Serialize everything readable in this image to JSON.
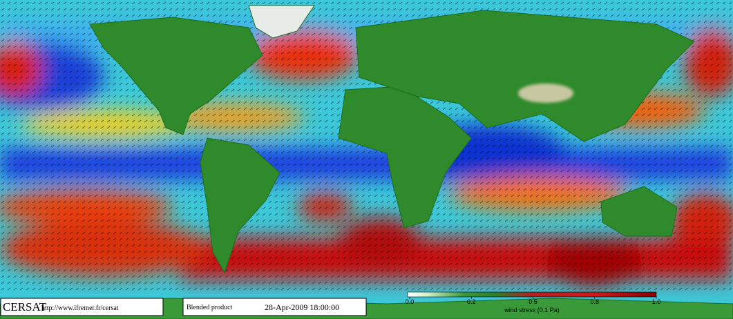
{
  "header": {
    "logo": "CERSAT",
    "url": "http://www.ifremer.fr/cersat",
    "product": "Blended product",
    "date": "28-Apr-2009 18:00:00"
  },
  "colorbar": {
    "label": "wind stress (0.1 Pa)",
    "ticks": [
      {
        "value": 0,
        "label": "0.0"
      },
      0.2,
      0.5,
      0.8,
      {
        "value": 1,
        "label": "1.0"
      }
    ]
  }
}
